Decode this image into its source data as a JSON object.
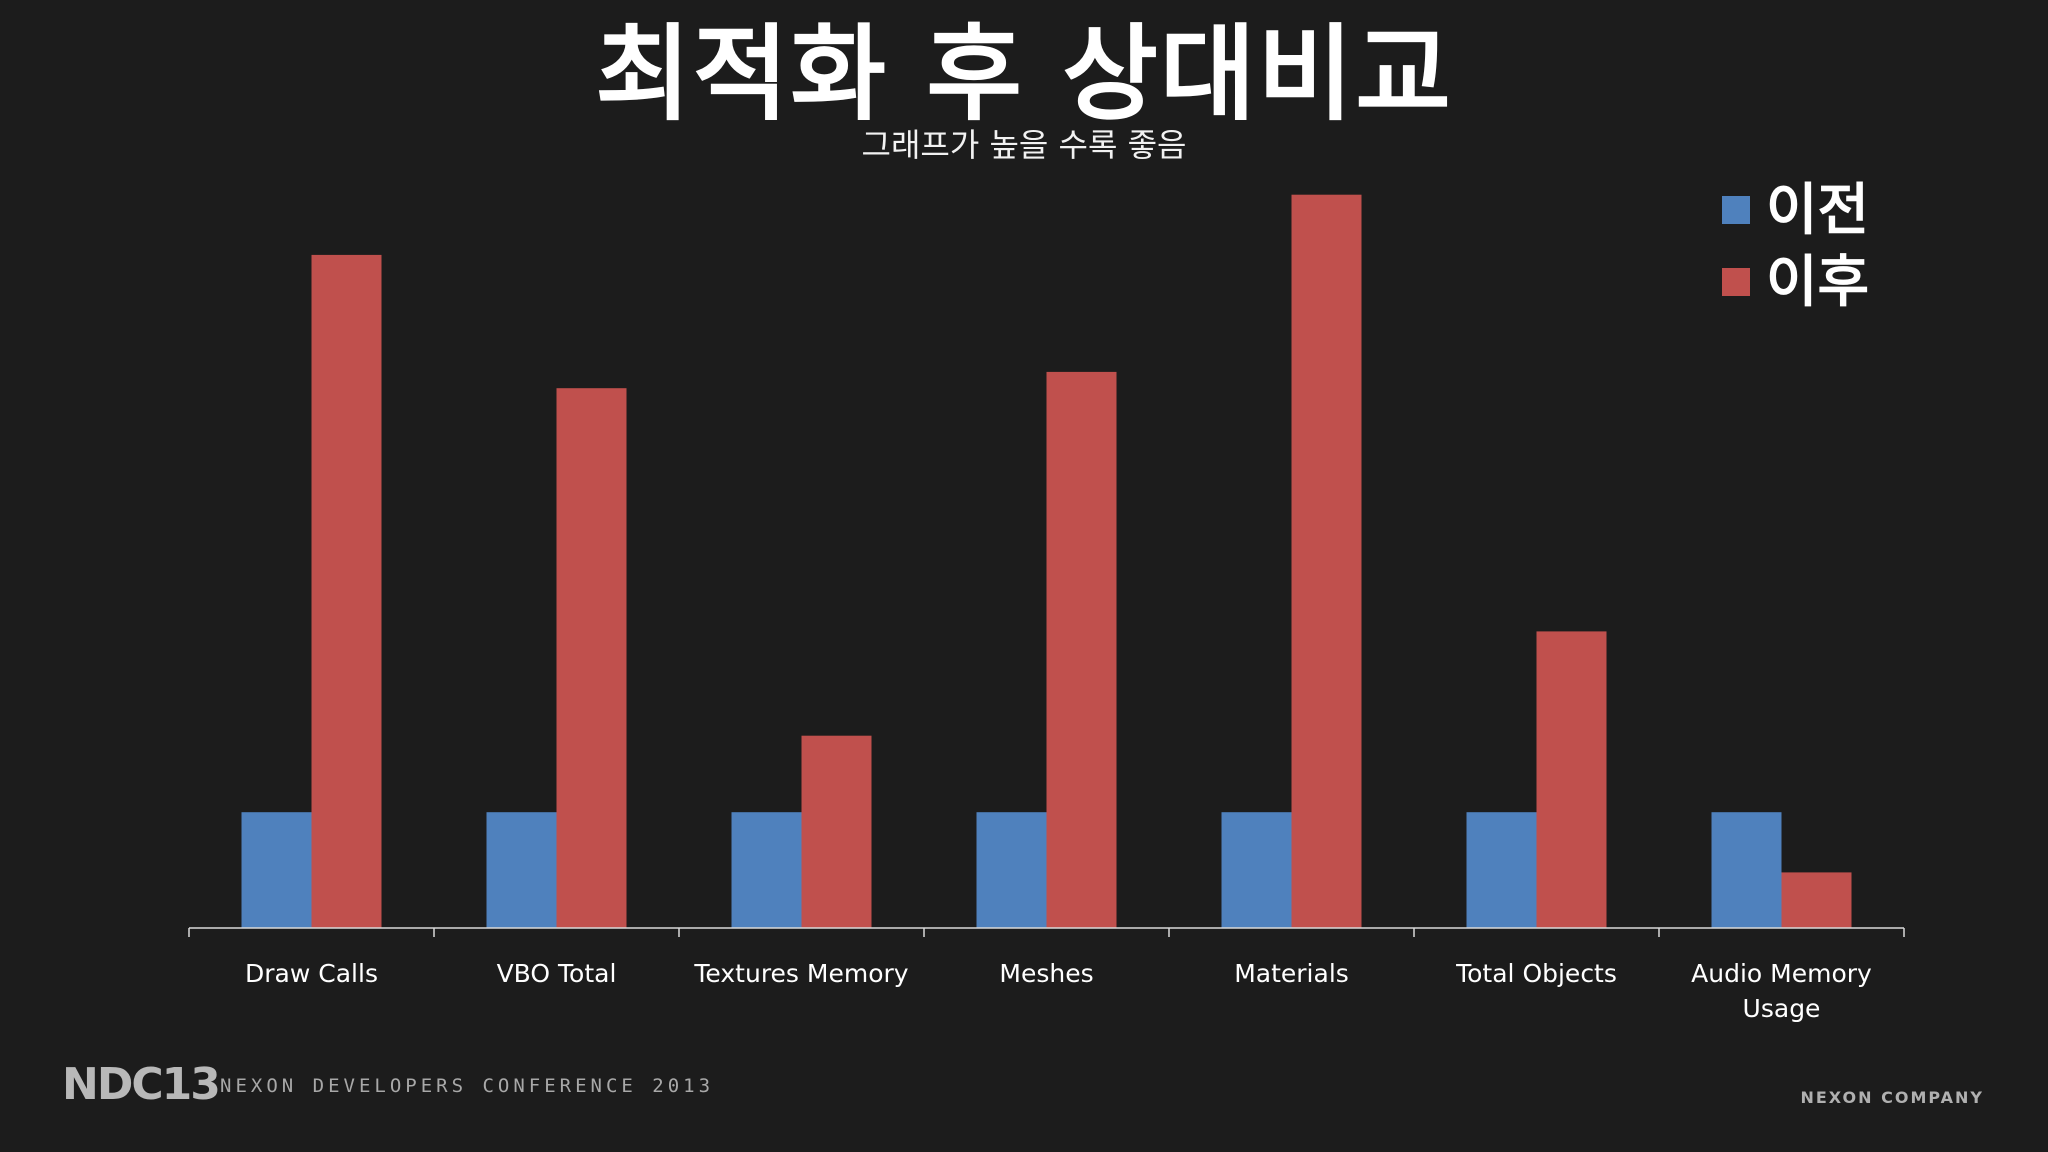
{
  "slide": {
    "title": "최적화 후 상대비교",
    "subtitle": "그래프가 높을 수록 좋음"
  },
  "legend": [
    {
      "label": "이전",
      "color": "#4f81bd"
    },
    {
      "label": "이후",
      "color": "#c0504d"
    }
  ],
  "footer": {
    "logo": "NDC13",
    "conference": "NEXON DEVELOPERS CONFERENCE 2013",
    "company": "NEXON COMPANY"
  },
  "chart_data": {
    "type": "bar",
    "categories": [
      "Draw Calls",
      "VBO Total",
      "Textures Memory",
      "Meshes",
      "Materials",
      "Total Objects",
      "Audio Memory Usage"
    ],
    "series": [
      {
        "name": "이전",
        "values": [
          1,
          1,
          1,
          1,
          1,
          1,
          1
        ],
        "color": "#4f81bd"
      },
      {
        "name": "이후",
        "values": [
          5.81,
          4.66,
          1.66,
          4.8,
          6.33,
          2.56,
          0.48
        ],
        "color": "#c0504d"
      }
    ],
    "ylim": [
      0,
      6.5
    ],
    "grid": false,
    "legend_position": "top-right"
  }
}
